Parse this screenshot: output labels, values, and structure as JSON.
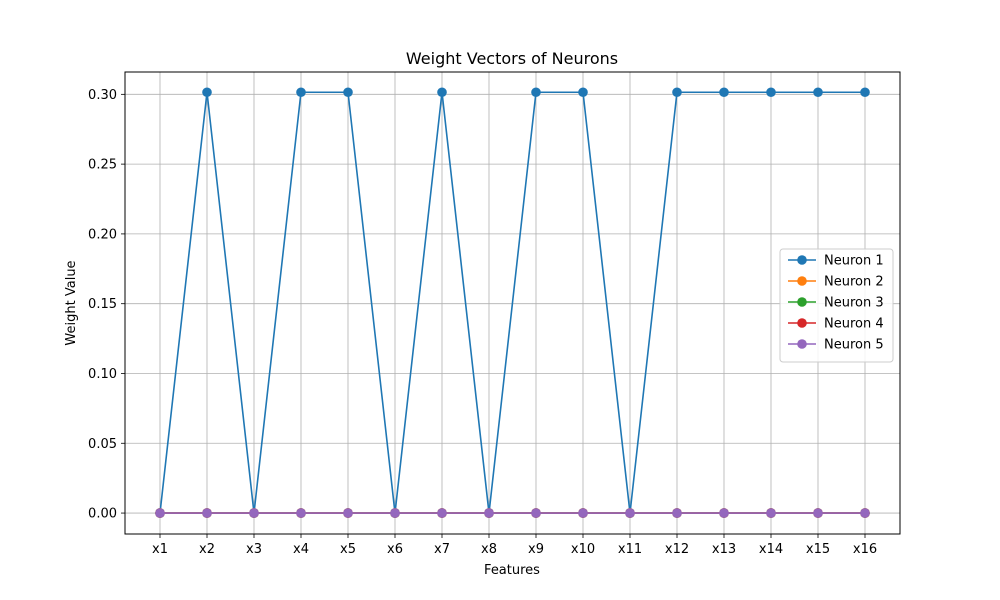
{
  "chart_data": {
    "type": "line",
    "title": "Weight Vectors of Neurons",
    "xlabel": "Features",
    "ylabel": "Weight Value",
    "categories": [
      "x1",
      "x2",
      "x3",
      "x4",
      "x5",
      "x6",
      "x7",
      "x8",
      "x9",
      "x10",
      "x11",
      "x12",
      "x13",
      "x14",
      "x15",
      "x16"
    ],
    "ylim": [
      -0.015,
      0.316
    ],
    "yticks": [
      0.0,
      0.05,
      0.1,
      0.15,
      0.2,
      0.25,
      0.3
    ],
    "ytick_labels": [
      "0.00",
      "0.05",
      "0.10",
      "0.15",
      "0.20",
      "0.25",
      "0.30"
    ],
    "grid": true,
    "legend_position": "center-right",
    "markers": "circle",
    "series": [
      {
        "name": "Neuron 1",
        "color": "#1f77b4",
        "values": [
          0.0,
          0.3015,
          0.0,
          0.3015,
          0.3015,
          0.0,
          0.3015,
          0.0,
          0.3015,
          0.3015,
          0.0,
          0.3015,
          0.3015,
          0.3015,
          0.3015,
          0.3015
        ]
      },
      {
        "name": "Neuron 2",
        "color": "#ff7f0e",
        "values": [
          0,
          0,
          0,
          0,
          0,
          0,
          0,
          0,
          0,
          0,
          0,
          0,
          0,
          0,
          0,
          0
        ]
      },
      {
        "name": "Neuron 3",
        "color": "#2ca02c",
        "values": [
          0,
          0,
          0,
          0,
          0,
          0,
          0,
          0,
          0,
          0,
          0,
          0,
          0,
          0,
          0,
          0
        ]
      },
      {
        "name": "Neuron 4",
        "color": "#d62728",
        "values": [
          0,
          0,
          0,
          0,
          0,
          0,
          0,
          0,
          0,
          0,
          0,
          0,
          0,
          0,
          0,
          0
        ]
      },
      {
        "name": "Neuron 5",
        "color": "#9467bd",
        "values": [
          0,
          0,
          0,
          0,
          0,
          0,
          0,
          0,
          0,
          0,
          0,
          0,
          0,
          0,
          0,
          0
        ]
      }
    ]
  }
}
